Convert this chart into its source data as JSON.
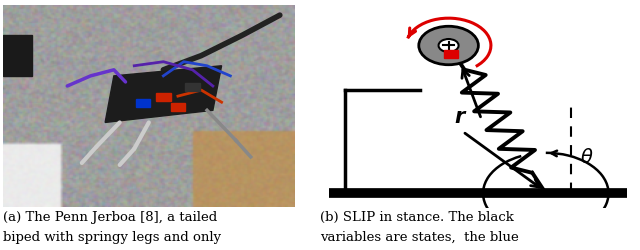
{
  "fig_width": 6.4,
  "fig_height": 2.5,
  "dpi": 100,
  "bg_color": "#ffffff",
  "caption_left_line1": "(a) The Penn Jerboa [8], a tailed",
  "caption_left_line2": "biped with springy legs and only",
  "caption_right_line1": "(b) SLIP in stance. The black",
  "caption_right_line2": "variables are states,  the blue",
  "caption_fontsize": 9.5,
  "ground_color": "#000000",
  "body_circle_color": "#888888",
  "red_color": "#dd0000",
  "arrow_color": "#000000",
  "photo_floor_color": "#8a8a8a",
  "photo_bg_color": "#b0b0b0",
  "photo_wall_color": "#c8c8c8",
  "photo_robot_color": "#1a1a1a"
}
